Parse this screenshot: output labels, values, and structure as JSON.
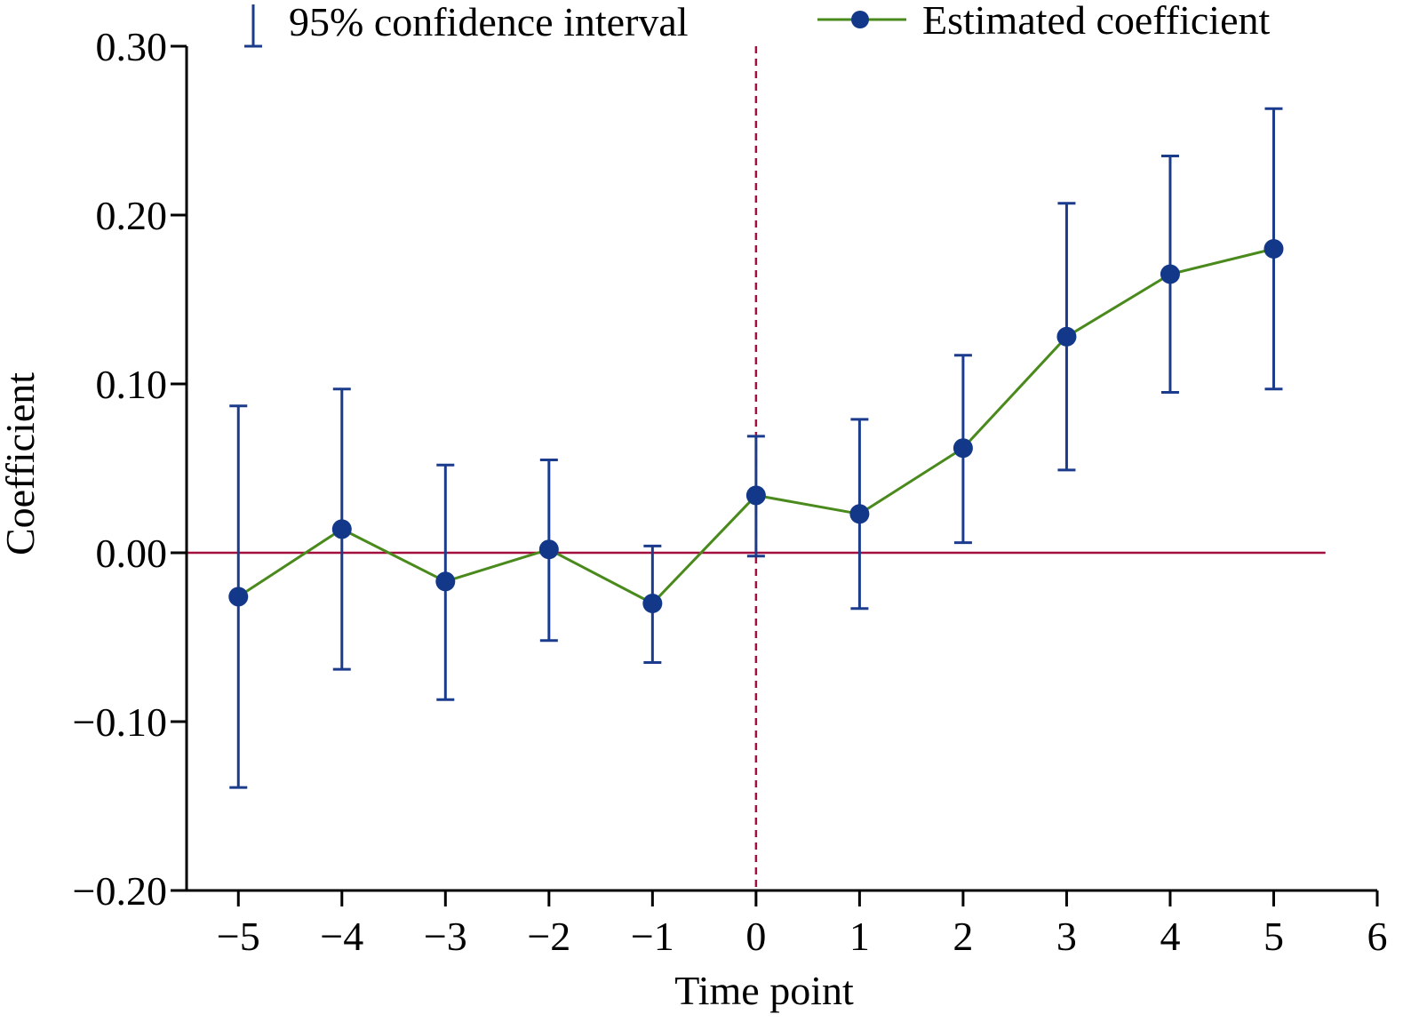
{
  "chart_data": {
    "type": "line",
    "title": "",
    "xlabel": "Time point",
    "ylabel": "Coefficient",
    "xlim": [
      -5.5,
      6
    ],
    "ylim": [
      -0.2,
      0.3
    ],
    "xticks": [
      -5,
      -4,
      -3,
      -2,
      -1,
      0,
      1,
      2,
      3,
      4,
      5,
      6
    ],
    "xtick_labels": [
      "−5",
      "−4",
      "−3",
      "−2",
      "−1",
      "0",
      "1",
      "2",
      "3",
      "4",
      "5",
      "6"
    ],
    "yticks": [
      -0.2,
      -0.1,
      0,
      0.1,
      0.2,
      0.3
    ],
    "ytick_labels": [
      "−0.20",
      "−0.10",
      "0.00",
      "0.10",
      "0.20",
      "0.30"
    ],
    "grid": false,
    "legend_placement": "top",
    "legend": [
      "95% confidence interval",
      "Estimated coefficient"
    ],
    "reference_lines": {
      "horizontal_y": 0,
      "vertical_x": 0
    },
    "x": [
      -5,
      -4,
      -3,
      -2,
      -1,
      0,
      1,
      2,
      3,
      4,
      5
    ],
    "series": [
      {
        "name": "Estimated coefficient",
        "values": [
          -0.026,
          0.014,
          -0.017,
          0.002,
          -0.03,
          0.034,
          0.023,
          0.062,
          0.128,
          0.165,
          0.18
        ]
      },
      {
        "name": "95% confidence interval",
        "lower": [
          -0.139,
          -0.069,
          -0.087,
          -0.052,
          -0.065,
          -0.002,
          -0.033,
          0.006,
          0.049,
          0.095,
          0.097
        ],
        "upper": [
          0.087,
          0.097,
          0.052,
          0.055,
          0.004,
          0.069,
          0.079,
          0.117,
          0.207,
          0.235,
          0.263
        ]
      }
    ],
    "colors": {
      "ci": "#1b3c8c",
      "line": "#4a8a1c",
      "marker": "#13388a",
      "reference": "#a3103f"
    }
  }
}
